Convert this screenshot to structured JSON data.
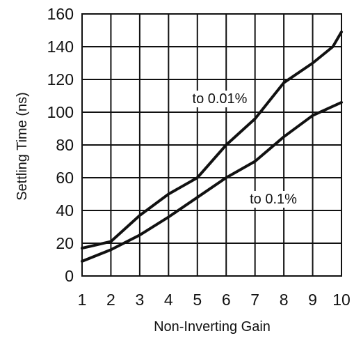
{
  "chart_data": {
    "type": "line",
    "title": "",
    "xlabel": "Non-Inverting Gain",
    "ylabel": "Settling Time (ns)",
    "xlim": [
      1,
      10
    ],
    "ylim": [
      0,
      160
    ],
    "x_ticks": [
      "1",
      "2",
      "3",
      "4",
      "5",
      "6",
      "7",
      "8",
      "9",
      "10"
    ],
    "y_ticks": [
      "0",
      "20",
      "40",
      "60",
      "80",
      "100",
      "120",
      "140",
      "160"
    ],
    "grid": true,
    "legend": "none (inline labels)",
    "series": [
      {
        "name": "to 0.01%",
        "x": [
          1,
          2,
          3,
          4,
          5,
          6,
          7,
          8,
          9,
          9.7,
          10
        ],
        "y": [
          17,
          21,
          37,
          50,
          60,
          80,
          96,
          118,
          130,
          140,
          149
        ]
      },
      {
        "name": "to 0.1%",
        "x": [
          1,
          2,
          3,
          4,
          5,
          6,
          7,
          8,
          9,
          10
        ],
        "y": [
          9,
          16,
          25,
          36,
          48,
          60,
          70,
          85,
          98,
          106
        ]
      }
    ],
    "colors": {
      "line": "#111111",
      "grid": "#111111",
      "background": "#ffffff"
    }
  }
}
